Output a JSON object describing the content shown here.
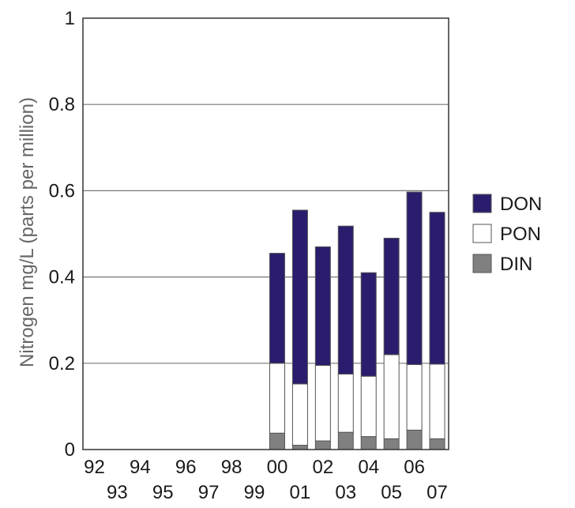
{
  "chart_data": {
    "type": "bar",
    "stacked": true,
    "categories": [
      "92",
      "93",
      "94",
      "95",
      "96",
      "97",
      "98",
      "99",
      "00",
      "01",
      "02",
      "03",
      "04",
      "05",
      "06",
      "07"
    ],
    "series": [
      {
        "name": "DIN",
        "color": "#808080",
        "values": [
          null,
          null,
          null,
          null,
          null,
          null,
          null,
          null,
          0.038,
          0.01,
          0.02,
          0.04,
          0.03,
          0.025,
          0.045,
          0.025
        ]
      },
      {
        "name": "PON",
        "color": "#ffffff",
        "values": [
          null,
          null,
          null,
          null,
          null,
          null,
          null,
          null,
          0.162,
          0.142,
          0.175,
          0.135,
          0.14,
          0.195,
          0.152,
          0.173
        ]
      },
      {
        "name": "DON",
        "color": "#2b1c6e",
        "values": [
          null,
          null,
          null,
          null,
          null,
          null,
          null,
          null,
          0.255,
          0.403,
          0.275,
          0.343,
          0.24,
          0.27,
          0.4,
          0.352
        ]
      }
    ],
    "ylabel": "Nitrogen mg/L (parts per million)",
    "xlabel": "",
    "ylim": [
      0,
      1
    ],
    "yticks": [
      "0",
      "0.2",
      "0.4",
      "0.6",
      "0.8",
      "1"
    ],
    "grid": true,
    "legend_position": "right"
  }
}
